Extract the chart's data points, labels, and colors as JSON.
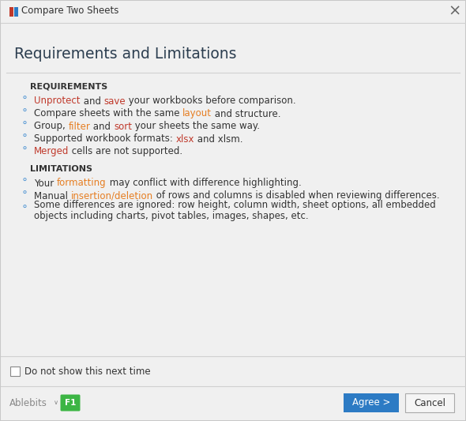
{
  "title_bar": "Compare Two Sheets",
  "main_title": "Requirements and Limitations",
  "bg_color": "#f0f0f0",
  "dialog_bg": "#f5f5f5",
  "section1_header": "REQUIREMENTS",
  "section2_header": "LIMITATIONS",
  "req_items": [
    [
      {
        "text": "Unprotect",
        "color": "#c0392b"
      },
      {
        "text": " and ",
        "color": "#333333"
      },
      {
        "text": "save",
        "color": "#c0392b"
      },
      {
        "text": " your workbooks before comparison.",
        "color": "#333333"
      }
    ],
    [
      {
        "text": "Compare sheets with the same ",
        "color": "#333333"
      },
      {
        "text": "layout",
        "color": "#e67e22"
      },
      {
        "text": " and structure.",
        "color": "#333333"
      }
    ],
    [
      {
        "text": "Group, ",
        "color": "#333333"
      },
      {
        "text": "filter",
        "color": "#e67e22"
      },
      {
        "text": " and ",
        "color": "#333333"
      },
      {
        "text": "sort",
        "color": "#c0392b"
      },
      {
        "text": " your sheets the same way.",
        "color": "#333333"
      }
    ],
    [
      {
        "text": "Supported workbook formats: ",
        "color": "#333333"
      },
      {
        "text": "xlsx",
        "color": "#c0392b"
      },
      {
        "text": " and xlsm.",
        "color": "#333333"
      }
    ],
    [
      {
        "text": "Merged",
        "color": "#c0392b"
      },
      {
        "text": " cells are not supported.",
        "color": "#333333"
      }
    ]
  ],
  "lim_items": [
    [
      {
        "text": "Your ",
        "color": "#333333"
      },
      {
        "text": "formatting",
        "color": "#e67e22"
      },
      {
        "text": " may conflict with difference highlighting.",
        "color": "#333333"
      }
    ],
    [
      {
        "text": "Manual ",
        "color": "#333333"
      },
      {
        "text": "insertion/deletion",
        "color": "#e67e22"
      },
      {
        "text": " of rows and columns is disabled when reviewing differences.",
        "color": "#333333"
      }
    ],
    [
      {
        "text": "Some differences are ignored: row height, column width, sheet ",
        "color": "#333333"
      },
      {
        "text": "options",
        "color": "#333333"
      },
      {
        "text": ", all embedded",
        "color": "#333333"
      }
    ]
  ],
  "lim_item2_line2": "objects including charts, pivot tables, images, shapes, etc.",
  "checkbox_label": "Do not show this next time",
  "agree_btn_color": "#2d7bc4",
  "agree_btn_text": "Agree >",
  "cancel_btn_text": "Cancel",
  "ablebits_text": "Ablebits",
  "bullet_color": "#5b9bd5",
  "section_header_color": "#333333",
  "title_bar_bg": "#f0f0f0",
  "bottom_bar_bg": "#f0f0f0",
  "border_color": "#c8c8c8",
  "separator_color": "#d0d0d0"
}
